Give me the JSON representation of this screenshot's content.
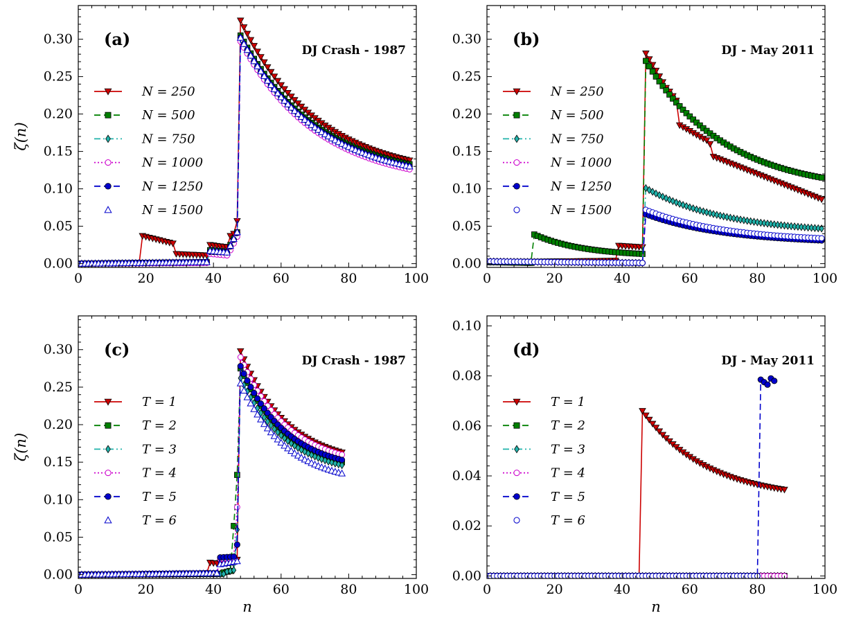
{
  "chart_data": [
    {
      "type": "line",
      "panel_label": "(a)",
      "title": "DJ Crash - 1987",
      "xlabel": "",
      "ylabel": "ζ(n)",
      "xlim": [
        0,
        100
      ],
      "ylim": [
        -0.005,
        0.345
      ],
      "xticks": [
        0,
        20,
        40,
        60,
        80,
        100
      ],
      "yticks": [
        0.0,
        0.05,
        0.1,
        0.15,
        0.2,
        0.25,
        0.3
      ],
      "ytick_decimals": 2,
      "legend_position": "left",
      "series": [
        {
          "name": "N = 250",
          "color": "#cc0000",
          "marker": "triangle-down",
          "linestyle": "solid",
          "segments": [
            {
              "x_start": 0,
              "x_end": 18,
              "y_start": 0.0,
              "y_end": 0.0
            },
            {
              "x_start": 19,
              "x_end": 28,
              "y_start": 0.037,
              "y_end": 0.027
            },
            {
              "x_start": 29,
              "x_end": 38,
              "y_start": 0.013,
              "y_end": 0.011
            },
            {
              "x_start": 39,
              "x_end": 44,
              "y_start": 0.025,
              "y_end": 0.022
            },
            {
              "x_start": 45,
              "x_end": 46,
              "y_start": 0.037,
              "y_end": 0.04
            },
            {
              "x_start": 47,
              "x_end": 47,
              "y_start": 0.057,
              "y_end": 0.057
            },
            {
              "x_start": 48,
              "x_end": 98,
              "y_start": 0.325,
              "y_end": 0.138,
              "shape": "decay"
            }
          ]
        },
        {
          "name": "N = 500",
          "color": "#008000",
          "marker": "square",
          "linestyle": "dashed",
          "segments": [
            {
              "x_start": 0,
              "x_end": 38,
              "y_start": 0.0,
              "y_end": 0.002
            },
            {
              "x_start": 39,
              "x_end": 44,
              "y_start": 0.018,
              "y_end": 0.016
            },
            {
              "x_start": 45,
              "x_end": 47,
              "y_start": 0.025,
              "y_end": 0.042
            },
            {
              "x_start": 48,
              "x_end": 98,
              "y_start": 0.305,
              "y_end": 0.133,
              "shape": "decay"
            }
          ]
        },
        {
          "name": "N = 750",
          "color": "#20b2aa",
          "marker": "diamond",
          "linestyle": "dashdot",
          "segments": [
            {
              "x_start": 0,
              "x_end": 38,
              "y_start": 0.0,
              "y_end": 0.002
            },
            {
              "x_start": 39,
              "x_end": 44,
              "y_start": 0.016,
              "y_end": 0.014
            },
            {
              "x_start": 45,
              "x_end": 47,
              "y_start": 0.022,
              "y_end": 0.04
            },
            {
              "x_start": 48,
              "x_end": 98,
              "y_start": 0.303,
              "y_end": 0.131,
              "shape": "decay"
            }
          ]
        },
        {
          "name": "N = 1000",
          "color": "#cc00cc",
          "marker": "circle-open",
          "linestyle": "dotted",
          "segments": [
            {
              "x_start": 0,
              "x_end": 38,
              "y_start": 0.0,
              "y_end": 0.001
            },
            {
              "x_start": 39,
              "x_end": 44,
              "y_start": 0.013,
              "y_end": 0.011
            },
            {
              "x_start": 45,
              "x_end": 47,
              "y_start": 0.018,
              "y_end": 0.036
            },
            {
              "x_start": 48,
              "x_end": 98,
              "y_start": 0.297,
              "y_end": 0.126,
              "shape": "decay"
            }
          ]
        },
        {
          "name": "N = 1250",
          "color": "#0000cc",
          "marker": "circle",
          "linestyle": "dashed",
          "segments": [
            {
              "x_start": 0,
              "x_end": 38,
              "y_start": 0.0,
              "y_end": 0.002
            },
            {
              "x_start": 39,
              "x_end": 44,
              "y_start": 0.016,
              "y_end": 0.015
            },
            {
              "x_start": 45,
              "x_end": 47,
              "y_start": 0.023,
              "y_end": 0.041
            },
            {
              "x_start": 48,
              "x_end": 98,
              "y_start": 0.302,
              "y_end": 0.13,
              "shape": "decay"
            }
          ]
        },
        {
          "name": "N = 1500",
          "color": "#0000cc",
          "marker": "triangle-open",
          "linestyle": "none",
          "segments": [
            {
              "x_start": 0,
              "x_end": 38,
              "y_start": 0.0,
              "y_end": 0.002
            },
            {
              "x_start": 39,
              "x_end": 44,
              "y_start": 0.017,
              "y_end": 0.015
            },
            {
              "x_start": 45,
              "x_end": 47,
              "y_start": 0.024,
              "y_end": 0.042
            },
            {
              "x_start": 48,
              "x_end": 98,
              "y_start": 0.302,
              "y_end": 0.13,
              "shape": "decay"
            }
          ]
        }
      ]
    },
    {
      "type": "line",
      "panel_label": "(b)",
      "title": "DJ - May 2011",
      "xlabel": "",
      "ylabel": "",
      "xlim": [
        0,
        100
      ],
      "ylim": [
        -0.005,
        0.345
      ],
      "xticks": [
        0,
        20,
        40,
        60,
        80,
        100
      ],
      "yticks": [
        0.0,
        0.05,
        0.1,
        0.15,
        0.2,
        0.25,
        0.3
      ],
      "ytick_decimals": 2,
      "legend_position": "left",
      "series": [
        {
          "name": "N = 250",
          "color": "#cc0000",
          "marker": "triangle-down",
          "linestyle": "solid",
          "segments": [
            {
              "x_start": 0,
              "x_end": 38,
              "y_start": 0.002,
              "y_end": 0.004
            },
            {
              "x_start": 39,
              "x_end": 46,
              "y_start": 0.024,
              "y_end": 0.022
            },
            {
              "x_start": 47,
              "x_end": 53,
              "y_start": 0.281,
              "y_end": 0.235
            },
            {
              "x_start": 54,
              "x_end": 56,
              "y_start": 0.23,
              "y_end": 0.218
            },
            {
              "x_start": 57,
              "x_end": 64,
              "y_start": 0.185,
              "y_end": 0.167
            },
            {
              "x_start": 65,
              "x_end": 66,
              "y_start": 0.165,
              "y_end": 0.16
            },
            {
              "x_start": 67,
              "x_end": 99,
              "y_start": 0.143,
              "y_end": 0.086
            }
          ]
        },
        {
          "name": "N = 500",
          "color": "#008000",
          "marker": "square",
          "linestyle": "dashed",
          "segments": [
            {
              "x_start": 0,
              "x_end": 13,
              "y_start": 0.002,
              "y_end": 0.001
            },
            {
              "x_start": 14,
              "x_end": 46,
              "y_start": 0.039,
              "y_end": 0.013,
              "shape": "decay"
            },
            {
              "x_start": 47,
              "x_end": 99,
              "y_start": 0.271,
              "y_end": 0.115,
              "shape": "decay"
            }
          ]
        },
        {
          "name": "N = 750",
          "color": "#20b2aa",
          "marker": "diamond",
          "linestyle": "dashdot",
          "segments": [
            {
              "x_start": 0,
              "x_end": 46,
              "y_start": 0.003,
              "y_end": 0.001
            },
            {
              "x_start": 47,
              "x_end": 99,
              "y_start": 0.101,
              "y_end": 0.047,
              "shape": "decay"
            }
          ]
        },
        {
          "name": "N = 1000",
          "color": "#cc00cc",
          "marker": "circle-open",
          "linestyle": "dotted",
          "segments": [
            {
              "x_start": 0,
              "x_end": 46,
              "y_start": 0.003,
              "y_end": 0.001
            },
            {
              "x_start": 47,
              "x_end": 99,
              "y_start": 0.071,
              "y_end": 0.033,
              "shape": "decay"
            }
          ]
        },
        {
          "name": "N = 1250",
          "color": "#0000cc",
          "marker": "circle",
          "linestyle": "dashed",
          "segments": [
            {
              "x_start": 0,
              "x_end": 46,
              "y_start": 0.003,
              "y_end": 0.001
            },
            {
              "x_start": 47,
              "x_end": 99,
              "y_start": 0.066,
              "y_end": 0.031,
              "shape": "decay"
            }
          ]
        },
        {
          "name": "N = 1500",
          "color": "#0000cc",
          "marker": "circle-open",
          "linestyle": "none",
          "segments": [
            {
              "x_start": 0,
              "x_end": 46,
              "y_start": 0.003,
              "y_end": 0.001
            },
            {
              "x_start": 47,
              "x_end": 99,
              "y_start": 0.072,
              "y_end": 0.034,
              "shape": "decay"
            }
          ]
        }
      ]
    },
    {
      "type": "line",
      "panel_label": "(c)",
      "title": "DJ Crash - 1987",
      "xlabel": "n",
      "ylabel": "ζ(n)",
      "xlim": [
        0,
        100
      ],
      "ylim": [
        -0.005,
        0.345
      ],
      "xticks": [
        0,
        20,
        40,
        60,
        80,
        100
      ],
      "yticks": [
        0.0,
        0.05,
        0.1,
        0.15,
        0.2,
        0.25,
        0.3
      ],
      "ytick_decimals": 2,
      "legend_position": "left",
      "series": [
        {
          "name": "T = 1",
          "color": "#cc0000",
          "marker": "triangle-down",
          "linestyle": "solid",
          "segments": [
            {
              "x_start": 0,
              "x_end": 38,
              "y_start": 0.0,
              "y_end": 0.002
            },
            {
              "x_start": 39,
              "x_end": 41,
              "y_start": 0.016,
              "y_end": 0.015
            },
            {
              "x_start": 42,
              "x_end": 46,
              "y_start": 0.016,
              "y_end": 0.014
            },
            {
              "x_start": 47,
              "x_end": 47,
              "y_start": 0.02,
              "y_end": 0.02
            },
            {
              "x_start": 48,
              "x_end": 78,
              "y_start": 0.298,
              "y_end": 0.163,
              "shape": "decay"
            }
          ]
        },
        {
          "name": "T = 2",
          "color": "#008000",
          "marker": "square",
          "linestyle": "dashed",
          "segments": [
            {
              "x_start": 0,
              "x_end": 42,
              "y_start": 0.0,
              "y_end": 0.001
            },
            {
              "x_start": 43,
              "x_end": 45,
              "y_start": 0.003,
              "y_end": 0.005
            },
            {
              "x_start": 46,
              "x_end": 46,
              "y_start": 0.065,
              "y_end": 0.065
            },
            {
              "x_start": 47,
              "x_end": 47,
              "y_start": 0.133,
              "y_end": 0.133
            },
            {
              "x_start": 48,
              "x_end": 78,
              "y_start": 0.275,
              "y_end": 0.15,
              "shape": "decay"
            }
          ]
        },
        {
          "name": "T = 3",
          "color": "#20b2aa",
          "marker": "diamond",
          "linestyle": "dashdot",
          "segments": [
            {
              "x_start": 0,
              "x_end": 43,
              "y_start": 0.0,
              "y_end": 0.001
            },
            {
              "x_start": 44,
              "x_end": 46,
              "y_start": 0.004,
              "y_end": 0.006
            },
            {
              "x_start": 47,
              "x_end": 47,
              "y_start": 0.06,
              "y_end": 0.06
            },
            {
              "x_start": 48,
              "x_end": 78,
              "y_start": 0.262,
              "y_end": 0.146,
              "shape": "decay"
            }
          ]
        },
        {
          "name": "T = 4",
          "color": "#cc00cc",
          "marker": "circle-open",
          "linestyle": "dotted",
          "segments": [
            {
              "x_start": 0,
              "x_end": 41,
              "y_start": 0.0,
              "y_end": 0.002
            },
            {
              "x_start": 42,
              "x_end": 46,
              "y_start": 0.021,
              "y_end": 0.022
            },
            {
              "x_start": 47,
              "x_end": 47,
              "y_start": 0.09,
              "y_end": 0.09
            },
            {
              "x_start": 48,
              "x_end": 78,
              "y_start": 0.29,
              "y_end": 0.16,
              "shape": "decay"
            }
          ]
        },
        {
          "name": "T = 5",
          "color": "#0000cc",
          "marker": "circle",
          "linestyle": "dashed",
          "segments": [
            {
              "x_start": 0,
              "x_end": 41,
              "y_start": 0.0,
              "y_end": 0.002
            },
            {
              "x_start": 42,
              "x_end": 46,
              "y_start": 0.023,
              "y_end": 0.024
            },
            {
              "x_start": 47,
              "x_end": 47,
              "y_start": 0.04,
              "y_end": 0.04
            },
            {
              "x_start": 48,
              "x_end": 78,
              "y_start": 0.278,
              "y_end": 0.153,
              "shape": "decay"
            }
          ]
        },
        {
          "name": "T = 6",
          "color": "#0000cc",
          "marker": "triangle-open",
          "linestyle": "none",
          "segments": [
            {
              "x_start": 0,
              "x_end": 41,
              "y_start": 0.0,
              "y_end": 0.002
            },
            {
              "x_start": 42,
              "x_end": 47,
              "y_start": 0.014,
              "y_end": 0.018
            },
            {
              "x_start": 48,
              "x_end": 78,
              "y_start": 0.255,
              "y_end": 0.135,
              "shape": "decay"
            }
          ]
        }
      ]
    },
    {
      "type": "line",
      "panel_label": "(d)",
      "title": "DJ - May 2011",
      "xlabel": "n",
      "ylabel": "",
      "xlim": [
        0,
        100
      ],
      "ylim": [
        -0.001,
        0.104
      ],
      "xticks": [
        0,
        20,
        40,
        60,
        80,
        100
      ],
      "yticks": [
        0.0,
        0.02,
        0.04,
        0.06,
        0.08,
        0.1
      ],
      "ytick_decimals": 2,
      "legend_position": "left",
      "series": [
        {
          "name": "T = 1",
          "color": "#cc0000",
          "marker": "triangle-down",
          "linestyle": "solid",
          "segments": [
            {
              "x_start": 0,
              "x_end": 45,
              "y_start": 0.0,
              "y_end": 0.0
            },
            {
              "x_start": 46,
              "x_end": 88,
              "y_start": 0.066,
              "y_end": 0.0345,
              "shape": "decay"
            }
          ]
        },
        {
          "name": "T = 2",
          "color": "#008000",
          "marker": "square",
          "linestyle": "dashed",
          "segments": [
            {
              "x_start": 0,
              "x_end": 88,
              "y_start": 0.0,
              "y_end": 0.0
            }
          ]
        },
        {
          "name": "T = 3",
          "color": "#20b2aa",
          "marker": "diamond",
          "linestyle": "dashdot",
          "segments": [
            {
              "x_start": 0,
              "x_end": 88,
              "y_start": 0.0,
              "y_end": 0.0
            }
          ]
        },
        {
          "name": "T = 4",
          "color": "#cc00cc",
          "marker": "circle-open",
          "linestyle": "dotted",
          "segments": [
            {
              "x_start": 0,
              "x_end": 88,
              "y_start": 0.0,
              "y_end": 0.0
            }
          ]
        },
        {
          "name": "T = 5",
          "color": "#0000cc",
          "marker": "circle",
          "linestyle": "dashed",
          "segments": [
            {
              "x_start": 0,
              "x_end": 80,
              "y_start": 0.0,
              "y_end": 0.0
            },
            {
              "x_start": 81,
              "x_end": 81,
              "y_start": 0.0785,
              "y_end": 0.0785
            },
            {
              "x_start": 82,
              "x_end": 82,
              "y_start": 0.0775,
              "y_end": 0.0775
            },
            {
              "x_start": 83,
              "x_end": 83,
              "y_start": 0.0765,
              "y_end": 0.0765
            },
            {
              "x_start": 84,
              "x_end": 84,
              "y_start": 0.079,
              "y_end": 0.079
            },
            {
              "x_start": 85,
              "x_end": 85,
              "y_start": 0.078,
              "y_end": 0.078
            }
          ]
        },
        {
          "name": "T = 6",
          "color": "#0000cc",
          "marker": "circle-open",
          "linestyle": "none",
          "segments": [
            {
              "x_start": 0,
              "x_end": 80,
              "y_start": 0.0,
              "y_end": 0.0
            }
          ]
        }
      ]
    }
  ]
}
